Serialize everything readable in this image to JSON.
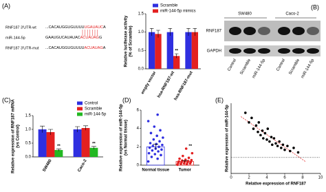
{
  "panel_labels": [
    "(A)",
    "(B)",
    "(C)",
    "(D)",
    "(E)"
  ],
  "sequences": [
    {
      "name": "RNF187 3'UTR-wt",
      "seq": "...CACAUGGUGUUUU",
      "seed": "UGAUAUC",
      "tail": "A"
    },
    {
      "name": "miR-144-5p",
      "seq": "GAAUGUCAUAUAC",
      "seed": "ACUAUAG",
      "tail": "G"
    },
    {
      "name": "RNF187 3'UTR-mut",
      "seq": "...CACAUGGUGUUUU",
      "seed": "ACUAUAG",
      "tail": "A"
    }
  ],
  "blot": {
    "groups": [
      "SW480",
      "Caco-2"
    ],
    "rows": [
      "RNF187",
      "GAPDH"
    ],
    "lanes": [
      "Control",
      "Scramble",
      "miR-144-5p",
      "Control",
      "Scramble",
      "miR-144-5p"
    ]
  },
  "chart_data": [
    {
      "type": "bar",
      "y_label": [
        "Relative luciferase activity",
        "(% of Scramble)"
      ],
      "categories": [
        "empty vector",
        "hsa-RNF187-wt",
        "hsa-RNF187-mut"
      ],
      "series": [
        {
          "name": "Scramble",
          "color": "#2f2fe0",
          "values": [
            1.0,
            1.0,
            1.0
          ],
          "errors": [
            0.1,
            0.1,
            0.1
          ],
          "sig": [
            null,
            null,
            null
          ]
        },
        {
          "name": "miR-144-5p mimics",
          "color": "#e32020",
          "values": [
            0.95,
            0.35,
            1.0
          ],
          "errors": [
            0.1,
            0.06,
            0.1
          ],
          "sig": [
            null,
            "**",
            null
          ]
        }
      ],
      "ylim": [
        0,
        1.5
      ],
      "yticks": [
        {
          "value": 0,
          "label": "0.0"
        },
        {
          "value": 0.5,
          "label": "0.5"
        },
        {
          "value": 1,
          "label": "1.0"
        },
        {
          "value": 1.5,
          "label": "1.5"
        }
      ]
    },
    {
      "type": "bar",
      "y_label": [
        "Relative expression of RNF187 mRNA",
        "(vs Control)"
      ],
      "categories": [
        "SW480",
        "Caco-2"
      ],
      "series": [
        {
          "name": "Control",
          "color": "#2f2fe0",
          "values": [
            1.0,
            1.0
          ],
          "errors": [
            0.12,
            0.1
          ],
          "sig": [
            null,
            null
          ]
        },
        {
          "name": "Scramble",
          "color": "#e32020",
          "values": [
            0.9,
            1.05
          ],
          "errors": [
            0.1,
            0.08
          ],
          "sig": [
            null,
            null
          ]
        },
        {
          "name": "miR-144-5p",
          "color": "#22b822",
          "values": [
            0.25,
            0.33
          ],
          "errors": [
            0.04,
            0.05
          ],
          "sig": [
            "**",
            "**"
          ]
        }
      ],
      "ylim": [
        0,
        1.5
      ],
      "yticks": [
        {
          "value": 0,
          "label": "0.0"
        },
        {
          "value": 0.5,
          "label": "0.5"
        },
        {
          "value": 1,
          "label": "1.0"
        },
        {
          "value": 1.5,
          "label": "1.5"
        }
      ]
    },
    {
      "type": "dotbar",
      "y_label": [
        "Relative expression of miR-144-5p",
        "(vs Normal tissue)"
      ],
      "categories": [
        "Normal tissue",
        "Tumor"
      ],
      "colors": [
        "#2f2fe0",
        "#e32020"
      ],
      "values": [
        2.0,
        0.4
      ],
      "errors": [
        0.3,
        0.1
      ],
      "sig": [
        null,
        "**"
      ],
      "points": [
        [
          0.4,
          0.7,
          0.9,
          1.1,
          1.2,
          1.3,
          1.5,
          1.6,
          1.7,
          1.8,
          1.9,
          2.0,
          2.1,
          2.2,
          2.3,
          2.4,
          2.6,
          2.8,
          3.0,
          3.2,
          3.5,
          3.8,
          4.2,
          4.8,
          5.5
        ],
        [
          0.05,
          0.1,
          0.15,
          0.2,
          0.2,
          0.25,
          0.3,
          0.3,
          0.35,
          0.4,
          0.4,
          0.45,
          0.5,
          0.55,
          0.6,
          0.7,
          0.8,
          1.0,
          1.3,
          1.8
        ]
      ],
      "ylim": [
        0,
        6
      ],
      "yticks": [
        0,
        2,
        4,
        6
      ]
    },
    {
      "type": "scatter",
      "x_label": "Relative expression of RNF187",
      "y_label": "Relative expression of miR-144-5p",
      "color": "#000000",
      "trend_color": "#e32020",
      "ref_line": 0,
      "x": [
        1.6,
        2.0,
        2.3,
        2.5,
        2.8,
        3.0,
        3.1,
        3.3,
        3.5,
        3.6,
        3.8,
        4.0,
        4.1,
        4.3,
        4.5,
        4.6,
        4.8,
        5.0,
        5.2,
        5.4,
        5.6,
        5.8,
        6.0,
        6.3,
        6.6,
        7.0,
        7.5
      ],
      "y": [
        0.7,
        0.55,
        0.62,
        0.45,
        0.5,
        0.4,
        0.55,
        0.35,
        0.42,
        0.3,
        0.38,
        0.28,
        0.45,
        0.25,
        0.32,
        0.2,
        0.3,
        0.22,
        0.18,
        0.25,
        0.15,
        0.2,
        0.12,
        0.18,
        0.1,
        0.15,
        0.08
      ],
      "xlim": [
        0,
        10
      ],
      "xticks": [
        0,
        2,
        4,
        6,
        8,
        10
      ],
      "ylim": [
        -0.25,
        0.85
      ]
    }
  ]
}
